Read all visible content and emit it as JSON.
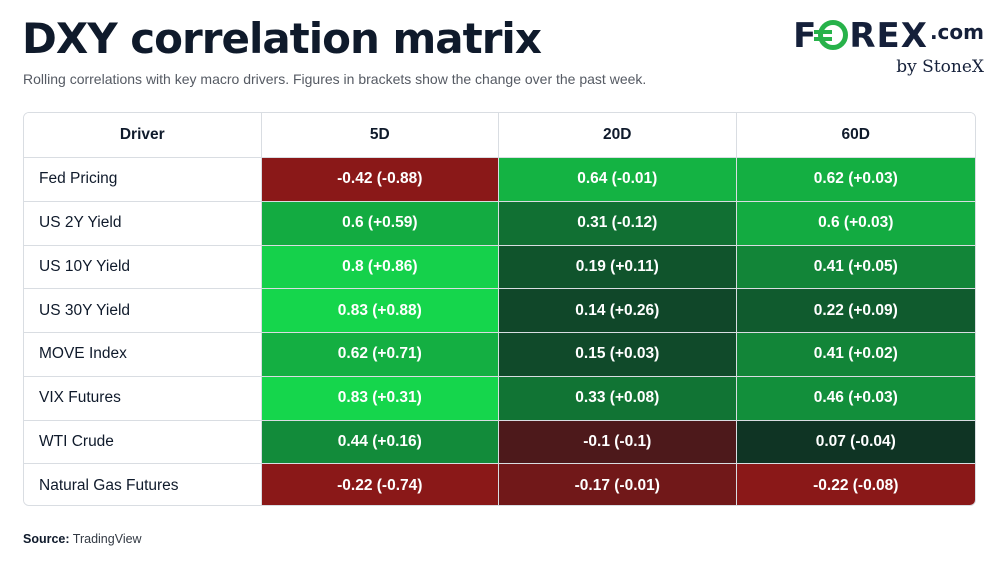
{
  "title": "DXY correlation matrix",
  "subtitle": "Rolling correlations with key macro drivers. Figures in brackets show the change over the past week.",
  "logo": {
    "text_before": "F",
    "text_after": "REX",
    "suffix": ".com",
    "byline": "by StoneX",
    "accent_color": "#27b24a"
  },
  "source_label": "Source:",
  "source_value": "TradingView",
  "chart_data": {
    "type": "table",
    "headers": [
      "Driver",
      "5D",
      "20D",
      "60D"
    ],
    "rows": [
      {
        "driver": "Fed Pricing",
        "cells": [
          "-0.42 (-0.88)",
          "0.64 (-0.01)",
          "0.62 (+0.03)"
        ],
        "values": [
          -0.42,
          0.64,
          0.62
        ],
        "changes": [
          -0.88,
          -0.01,
          0.03
        ]
      },
      {
        "driver": "US 2Y Yield",
        "cells": [
          "0.6 (+0.59)",
          "0.31 (-0.12)",
          "0.6 (+0.03)"
        ],
        "values": [
          0.6,
          0.31,
          0.6
        ],
        "changes": [
          0.59,
          -0.12,
          0.03
        ]
      },
      {
        "driver": "US 10Y Yield",
        "cells": [
          "0.8 (+0.86)",
          "0.19 (+0.11)",
          "0.41 (+0.05)"
        ],
        "values": [
          0.8,
          0.19,
          0.41
        ],
        "changes": [
          0.86,
          0.11,
          0.05
        ]
      },
      {
        "driver": "US 30Y Yield",
        "cells": [
          "0.83 (+0.88)",
          "0.14 (+0.26)",
          "0.22 (+0.09)"
        ],
        "values": [
          0.83,
          0.14,
          0.22
        ],
        "changes": [
          0.88,
          0.26,
          0.09
        ]
      },
      {
        "driver": "MOVE Index",
        "cells": [
          "0.62 (+0.71)",
          "0.15 (+0.03)",
          "0.41 (+0.02)"
        ],
        "values": [
          0.62,
          0.15,
          0.41
        ],
        "changes": [
          0.71,
          0.03,
          0.02
        ]
      },
      {
        "driver": "VIX Futures",
        "cells": [
          "0.83 (+0.31)",
          "0.33 (+0.08)",
          "0.46 (+0.03)"
        ],
        "values": [
          0.83,
          0.33,
          0.46
        ],
        "changes": [
          0.31,
          0.08,
          0.03
        ]
      },
      {
        "driver": "WTI Crude",
        "cells": [
          "0.44 (+0.16)",
          "-0.1 (-0.1)",
          "0.07 (-0.04)"
        ],
        "values": [
          0.44,
          -0.1,
          0.07
        ],
        "changes": [
          0.16,
          -0.1,
          -0.04
        ]
      },
      {
        "driver": "Natural Gas Futures",
        "cells": [
          "-0.22 (-0.74)",
          "-0.17 (-0.01)",
          "-0.22 (-0.08)"
        ],
        "values": [
          -0.22,
          -0.17,
          -0.22
        ],
        "changes": [
          -0.74,
          -0.01,
          -0.08
        ]
      }
    ],
    "color_scale": {
      "negative": "#8a1818",
      "neutral": "#0e1a1e",
      "positive": "#15d64c"
    }
  }
}
